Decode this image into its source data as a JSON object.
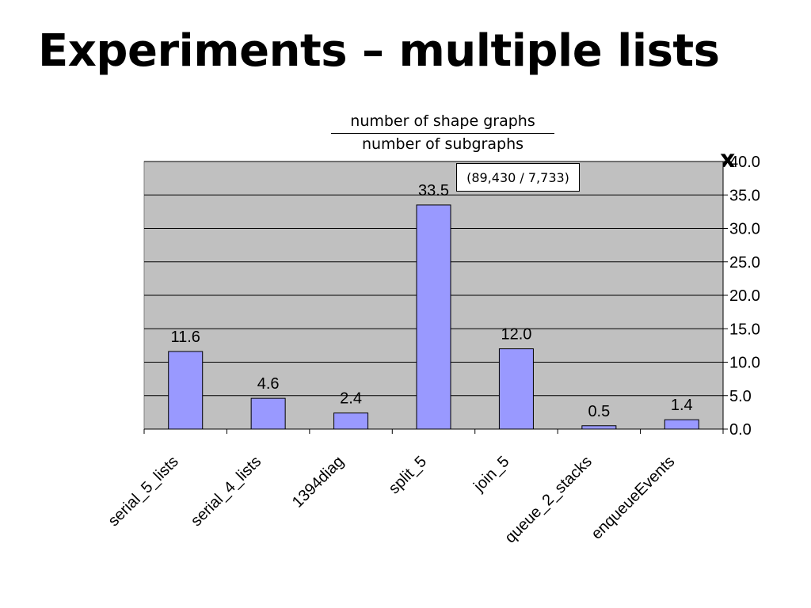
{
  "slide": {
    "title": "Experiments – multiple lists"
  },
  "fraction": {
    "numerator": "number of shape graphs",
    "denominator": "number of subgraphs"
  },
  "multiplier_symbol": "x",
  "annotation": "(89,430 / 7,733)",
  "chart_data": {
    "type": "bar",
    "categories": [
      "serial_5_lists",
      "serial_4_lists",
      "1394diag",
      "split_5",
      "join_5",
      "queue_2_stacks",
      "enqueueEvents"
    ],
    "values": [
      11.6,
      4.6,
      2.4,
      33.5,
      12.0,
      0.5,
      1.4
    ],
    "data_labels": [
      "11.6",
      "4.6",
      "2.4",
      "33.5",
      "12.0",
      "0.5",
      "1.4"
    ],
    "y_ticks": [
      "0.0",
      "5.0",
      "10.0",
      "15.0",
      "20.0",
      "25.0",
      "30.0",
      "35.0",
      "40.0"
    ],
    "ylim": [
      0,
      40
    ],
    "y_axis_side": "right",
    "grid": true,
    "colors": {
      "bar": "#9999ff",
      "plot_bg": "#c0c0c0",
      "gridline": "#000000"
    }
  }
}
